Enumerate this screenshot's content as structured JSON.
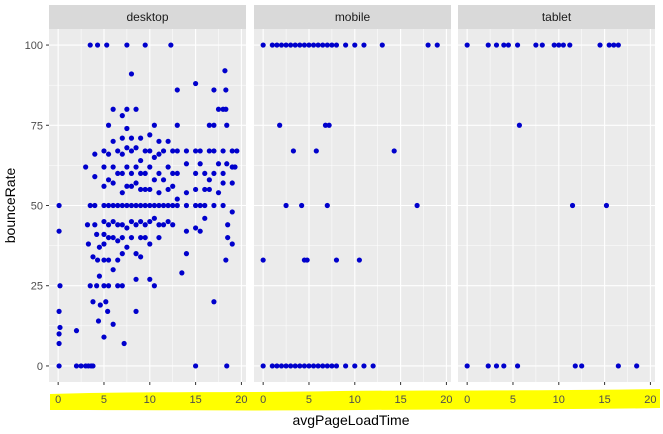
{
  "colors": {
    "panel_background": "#ebebeb",
    "strip_background": "#d9d9d9",
    "grid_major": "#ffffff",
    "point": "#0000cc",
    "highlight": "#ffff00"
  },
  "chart_data": {
    "type": "scatter",
    "facet_by": "deviceCategory",
    "xlabel": "avgPageLoadTime",
    "ylabel": "bounceRate",
    "xlim": [
      -1,
      20.5
    ],
    "ylim": [
      -5,
      105
    ],
    "x_ticks": [
      0,
      5,
      10,
      15,
      20
    ],
    "y_ticks": [
      0,
      25,
      50,
      75,
      100
    ],
    "grid": true,
    "annotations": [
      "yellow highlight over x-axis tick labels"
    ],
    "panels": [
      {
        "label": "desktop",
        "points": [
          [
            0.1,
            50
          ],
          [
            0.1,
            42
          ],
          [
            0.2,
            25
          ],
          [
            0.1,
            17
          ],
          [
            0.2,
            12
          ],
          [
            0.1,
            10
          ],
          [
            0.1,
            7
          ],
          [
            0.1,
            0
          ],
          [
            2,
            11
          ],
          [
            2,
            0
          ],
          [
            2.5,
            0
          ],
          [
            3,
            0
          ],
          [
            3.3,
            0
          ],
          [
            3.6,
            0
          ],
          [
            3.8,
            0
          ],
          [
            3,
            62
          ],
          [
            3.5,
            50
          ],
          [
            3.2,
            44
          ],
          [
            3.3,
            38
          ],
          [
            3.8,
            34
          ],
          [
            3.5,
            25
          ],
          [
            3.8,
            20
          ],
          [
            4,
            66
          ],
          [
            4,
            59
          ],
          [
            4,
            50
          ],
          [
            4,
            44
          ],
          [
            4.2,
            41
          ],
          [
            4.5,
            37
          ],
          [
            4.3,
            33
          ],
          [
            4.5,
            28
          ],
          [
            4.2,
            25
          ],
          [
            4.6,
            19
          ],
          [
            4.4,
            14
          ],
          [
            5,
            67
          ],
          [
            5,
            62
          ],
          [
            5,
            56
          ],
          [
            5,
            50
          ],
          [
            5,
            45
          ],
          [
            5,
            41
          ],
          [
            5,
            38
          ],
          [
            5,
            33
          ],
          [
            5,
            25
          ],
          [
            5.2,
            20
          ],
          [
            5.4,
            17
          ],
          [
            5,
            9
          ],
          [
            5.5,
            75
          ],
          [
            5.5,
            66
          ],
          [
            5.5,
            58
          ],
          [
            5.5,
            50
          ],
          [
            5.5,
            44
          ],
          [
            5.5,
            40
          ],
          [
            5.5,
            33
          ],
          [
            5.5,
            25
          ],
          [
            6,
            13
          ],
          [
            6,
            80
          ],
          [
            6,
            70
          ],
          [
            6,
            62
          ],
          [
            6,
            57
          ],
          [
            6,
            50
          ],
          [
            6,
            45
          ],
          [
            6,
            40
          ],
          [
            6,
            30
          ],
          [
            6.5,
            67
          ],
          [
            6.5,
            60
          ],
          [
            6.5,
            50
          ],
          [
            6.5,
            44
          ],
          [
            6.5,
            39
          ],
          [
            6.5,
            33
          ],
          [
            6.5,
            25
          ],
          [
            7,
            78
          ],
          [
            7,
            71
          ],
          [
            7,
            66
          ],
          [
            7,
            60
          ],
          [
            7,
            54
          ],
          [
            7,
            50
          ],
          [
            7,
            44
          ],
          [
            7,
            40
          ],
          [
            7,
            35
          ],
          [
            7,
            25
          ],
          [
            7.2,
            7
          ],
          [
            7.5,
            80
          ],
          [
            7.5,
            74
          ],
          [
            7.5,
            68
          ],
          [
            7.5,
            62
          ],
          [
            7.5,
            56
          ],
          [
            7.5,
            50
          ],
          [
            7.5,
            43
          ],
          [
            7.5,
            37
          ],
          [
            8,
            91
          ],
          [
            8,
            71
          ],
          [
            8,
            67
          ],
          [
            8,
            60
          ],
          [
            8,
            56
          ],
          [
            8,
            50
          ],
          [
            8,
            45
          ],
          [
            8,
            40
          ],
          [
            8.5,
            27
          ],
          [
            8.5,
            80
          ],
          [
            8.5,
            68
          ],
          [
            8.5,
            62
          ],
          [
            8.5,
            57
          ],
          [
            8.5,
            50
          ],
          [
            8.5,
            44
          ],
          [
            8.5,
            35
          ],
          [
            8.5,
            17
          ],
          [
            9,
            71
          ],
          [
            9,
            64
          ],
          [
            9,
            60
          ],
          [
            9,
            55
          ],
          [
            9,
            50
          ],
          [
            9,
            45
          ],
          [
            9,
            40
          ],
          [
            9,
            34
          ],
          [
            9.5,
            67
          ],
          [
            9.5,
            60
          ],
          [
            9.5,
            55
          ],
          [
            9.5,
            50
          ],
          [
            9.5,
            44
          ],
          [
            9.5,
            40
          ],
          [
            10,
            27
          ],
          [
            10,
            72
          ],
          [
            10,
            67
          ],
          [
            10,
            62
          ],
          [
            10,
            55
          ],
          [
            10,
            50
          ],
          [
            10,
            45
          ],
          [
            10,
            38
          ],
          [
            10.5,
            25
          ],
          [
            10.5,
            75
          ],
          [
            10.5,
            65
          ],
          [
            10.5,
            58
          ],
          [
            10.5,
            50
          ],
          [
            10.5,
            46
          ],
          [
            11,
            70
          ],
          [
            11,
            66
          ],
          [
            11,
            60
          ],
          [
            11,
            54
          ],
          [
            11,
            50
          ],
          [
            11,
            44
          ],
          [
            11,
            40
          ],
          [
            11.5,
            67
          ],
          [
            11.5,
            58
          ],
          [
            11.5,
            50
          ],
          [
            11.5,
            44
          ],
          [
            12,
            70
          ],
          [
            12,
            62
          ],
          [
            12,
            55
          ],
          [
            12,
            50
          ],
          [
            12,
            45
          ],
          [
            12.5,
            67
          ],
          [
            12.5,
            60
          ],
          [
            12.5,
            56
          ],
          [
            12.5,
            50
          ],
          [
            12.5,
            44
          ],
          [
            13,
            86
          ],
          [
            13,
            75
          ],
          [
            13,
            67
          ],
          [
            13,
            60
          ],
          [
            13,
            52
          ],
          [
            13,
            50
          ],
          [
            13.5,
            29
          ],
          [
            14,
            67
          ],
          [
            14,
            63
          ],
          [
            14,
            54
          ],
          [
            14,
            50
          ],
          [
            14,
            42
          ],
          [
            14,
            35
          ],
          [
            15,
            88
          ],
          [
            15,
            67
          ],
          [
            15,
            60
          ],
          [
            15,
            55
          ],
          [
            15,
            50
          ],
          [
            15,
            43
          ],
          [
            15,
            0
          ],
          [
            15.5,
            67
          ],
          [
            15.5,
            63
          ],
          [
            15.5,
            50
          ],
          [
            15.5,
            42
          ],
          [
            16,
            60
          ],
          [
            16,
            55
          ],
          [
            16,
            50
          ],
          [
            16,
            46
          ],
          [
            16.5,
            75
          ],
          [
            16.5,
            67
          ],
          [
            16.5,
            58
          ],
          [
            16.5,
            55
          ],
          [
            17,
            20
          ],
          [
            17,
            86
          ],
          [
            17,
            75
          ],
          [
            17,
            67
          ],
          [
            17,
            60
          ],
          [
            17,
            50
          ],
          [
            17.5,
            80
          ],
          [
            17.5,
            63
          ],
          [
            17.5,
            54
          ],
          [
            18,
            80
          ],
          [
            18,
            67
          ],
          [
            18,
            60
          ],
          [
            18,
            57
          ],
          [
            18,
            50
          ],
          [
            18.2,
            92
          ],
          [
            18.3,
            86
          ],
          [
            18.3,
            80
          ],
          [
            18.4,
            75
          ],
          [
            18.4,
            63
          ],
          [
            18.5,
            44
          ],
          [
            18.5,
            40
          ],
          [
            18.3,
            33
          ],
          [
            18.4,
            0
          ],
          [
            19,
            67
          ],
          [
            19,
            62
          ],
          [
            19,
            57
          ],
          [
            19,
            48
          ],
          [
            19,
            38
          ],
          [
            19.3,
            62
          ],
          [
            19.5,
            67
          ],
          [
            3.5,
            100
          ],
          [
            4.3,
            100
          ],
          [
            5.3,
            100
          ],
          [
            7.5,
            100
          ],
          [
            9.5,
            100
          ],
          [
            12.3,
            100
          ]
        ]
      },
      {
        "label": "mobile",
        "points": [
          [
            0,
            100
          ],
          [
            0,
            33
          ],
          [
            0,
            0
          ],
          [
            1,
            100
          ],
          [
            1,
            0
          ],
          [
            1.5,
            100
          ],
          [
            1.5,
            0
          ],
          [
            2,
            100
          ],
          [
            2,
            0
          ],
          [
            2.5,
            100
          ],
          [
            2.5,
            0
          ],
          [
            3,
            100
          ],
          [
            3,
            0
          ],
          [
            3.5,
            100
          ],
          [
            3.5,
            0
          ],
          [
            4,
            100
          ],
          [
            4,
            0
          ],
          [
            4.5,
            100
          ],
          [
            4.5,
            0
          ],
          [
            5,
            100
          ],
          [
            5,
            0
          ],
          [
            5.5,
            100
          ],
          [
            5.5,
            0
          ],
          [
            6,
            100
          ],
          [
            6,
            0
          ],
          [
            6.5,
            100
          ],
          [
            6.5,
            0
          ],
          [
            7,
            100
          ],
          [
            7,
            0
          ],
          [
            7.5,
            100
          ],
          [
            7.5,
            0
          ],
          [
            8,
            100
          ],
          [
            8,
            0
          ],
          [
            9,
            100
          ],
          [
            9,
            0
          ],
          [
            10,
            100
          ],
          [
            10,
            0
          ],
          [
            11,
            100
          ],
          [
            11,
            0
          ],
          [
            12,
            0
          ],
          [
            13,
            100
          ],
          [
            1.8,
            75
          ],
          [
            2.5,
            50
          ],
          [
            3.3,
            67
          ],
          [
            4.2,
            50
          ],
          [
            4.5,
            33
          ],
          [
            4.8,
            33
          ],
          [
            5.8,
            67
          ],
          [
            6.8,
            75
          ],
          [
            7.2,
            75
          ],
          [
            7,
            50
          ],
          [
            8,
            33
          ],
          [
            10.5,
            33
          ],
          [
            14.3,
            67
          ],
          [
            16.8,
            50
          ],
          [
            18,
            100
          ],
          [
            19,
            100
          ]
        ]
      },
      {
        "label": "tablet",
        "points": [
          [
            0,
            100
          ],
          [
            0,
            0
          ],
          [
            2.3,
            100
          ],
          [
            2.3,
            0
          ],
          [
            3.2,
            100
          ],
          [
            3.2,
            0
          ],
          [
            4,
            100
          ],
          [
            4,
            0
          ],
          [
            4.5,
            100
          ],
          [
            5.5,
            100
          ],
          [
            5.5,
            0
          ],
          [
            5.7,
            75
          ],
          [
            7.5,
            100
          ],
          [
            8.2,
            100
          ],
          [
            9.5,
            100
          ],
          [
            10,
            100
          ],
          [
            10.5,
            100
          ],
          [
            11.2,
            100
          ],
          [
            11.5,
            50
          ],
          [
            11.8,
            0
          ],
          [
            12.5,
            0
          ],
          [
            14.5,
            100
          ],
          [
            15.2,
            50
          ],
          [
            15.5,
            100
          ],
          [
            16,
            100
          ],
          [
            16.5,
            100
          ],
          [
            16.5,
            0
          ],
          [
            18.5,
            0
          ]
        ]
      }
    ]
  }
}
